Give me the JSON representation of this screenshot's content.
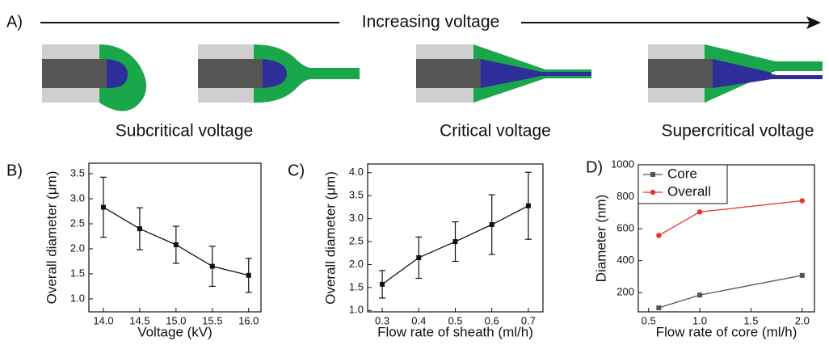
{
  "header": {
    "panel_label": "A)",
    "arrow_text": "Increasing voltage",
    "captions": [
      "Subcritical voltage",
      "Critical voltage",
      "Supercritical voltage"
    ]
  },
  "panel_labels": [
    "B)",
    "C)",
    "D)"
  ],
  "chart_data": [
    {
      "type": "line",
      "xlabel": "Voltage (kV)",
      "ylabel": "Overall diameter (μm)",
      "x": [
        14.0,
        14.5,
        15.0,
        15.5,
        16.0
      ],
      "xlim": [
        13.8,
        16.17
      ],
      "xticks": [
        {
          "value": 14,
          "label": "14.0"
        },
        14.5,
        {
          "value": 15,
          "label": "15.0"
        },
        15.5,
        {
          "value": 16,
          "label": "16.0"
        }
      ],
      "ylim": [
        0.74,
        3.71
      ],
      "yticks": [
        {
          "value": 1,
          "label": "1.0"
        },
        1.5,
        {
          "value": 2,
          "label": "2.0"
        },
        2.5,
        {
          "value": 3,
          "label": "3.0"
        },
        3.5
      ],
      "series": [
        {
          "color": "#111111",
          "values": [
            2.83,
            2.4,
            2.08,
            1.65,
            1.47
          ],
          "errors": [
            0.6,
            0.42,
            0.37,
            0.4,
            0.34
          ]
        }
      ]
    },
    {
      "type": "line",
      "xlabel": "Flow rate of sheath (ml/h)",
      "ylabel": "Overall diameter (μm)",
      "x": [
        0.3,
        0.4,
        0.5,
        0.6,
        0.7
      ],
      "xlim": [
        0.26,
        0.74
      ],
      "xticks": [
        0.3,
        0.4,
        0.5,
        0.6,
        0.7
      ],
      "ylim": [
        0.97,
        4.19
      ],
      "yticks": [
        {
          "value": 1,
          "label": "1.0"
        },
        1.5,
        {
          "value": 2,
          "label": "2.0"
        },
        2.5,
        {
          "value": 3,
          "label": "3.0"
        },
        3.5,
        {
          "value": 4,
          "label": "4.0"
        }
      ],
      "series": [
        {
          "color": "#111111",
          "values": [
            1.57,
            2.15,
            2.5,
            2.87,
            3.28
          ],
          "errors": [
            0.3,
            0.45,
            0.43,
            0.65,
            0.73
          ]
        }
      ]
    },
    {
      "type": "line",
      "xlabel": "Flow rate of core (ml/h)",
      "ylabel": "Diameter (nm)",
      "x": [
        0.6,
        1.0,
        2.0
      ],
      "xlim": [
        0.4,
        2.12
      ],
      "xticks": [
        0.5,
        {
          "value": 1,
          "label": "1.0"
        },
        1.5,
        {
          "value": 2,
          "label": "2.0"
        }
      ],
      "ylim": [
        80,
        1000
      ],
      "yticks": [
        200,
        400,
        600,
        800,
        1000
      ],
      "legend": "upper left",
      "series": [
        {
          "name": "Core",
          "color": "#555555",
          "marker": "square",
          "values": [
            105,
            185,
            308
          ]
        },
        {
          "name": "Overall",
          "color": "#e8312f",
          "marker": "circle",
          "values": [
            558,
            705,
            775
          ]
        }
      ]
    }
  ]
}
